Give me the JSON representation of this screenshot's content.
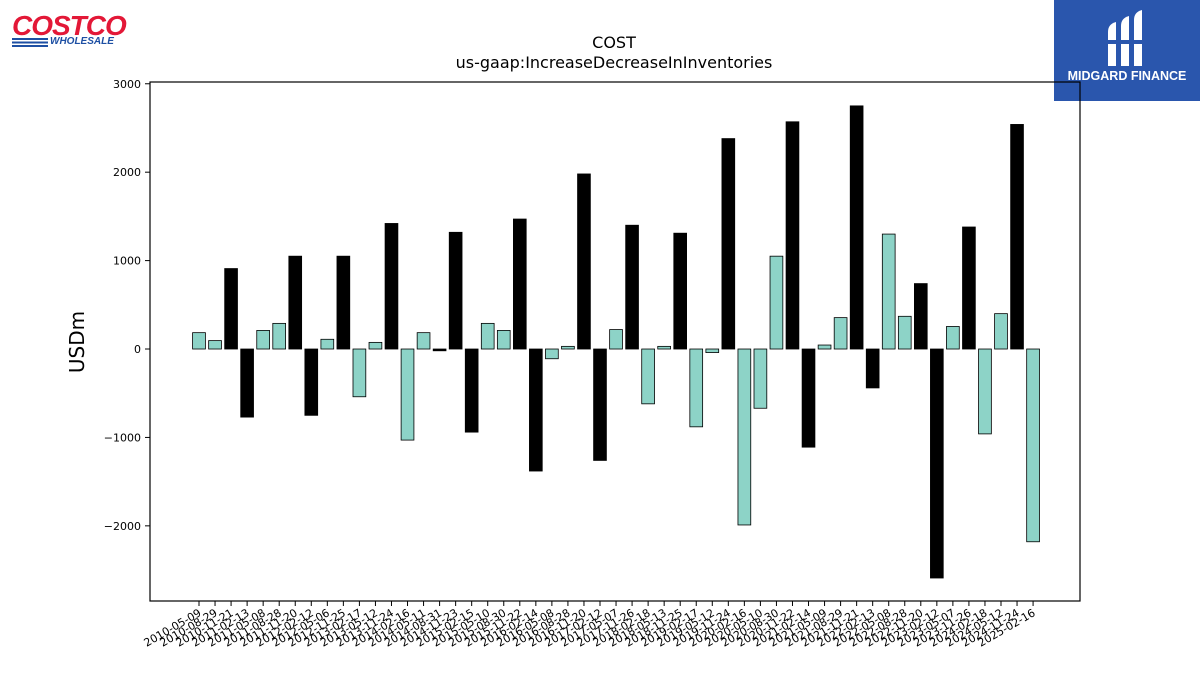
{
  "logo_left": {
    "brand": "COSTCO",
    "sub": "WHOLESALE"
  },
  "logo_right": {
    "name": "MIDGARD FINANCE",
    "icon": "midgard-mark-icon"
  },
  "chart_data": {
    "type": "bar",
    "title": "COST",
    "subtitle": "us-gaap:IncreaseDecreaseInInventories",
    "ylabel": "USDm",
    "xlabel": "",
    "ylim": [
      -2850,
      3020
    ],
    "yticks": [
      -2000,
      -1000,
      0,
      1000,
      2000,
      3000
    ],
    "ytick_labels": [
      "−2000",
      "−1000",
      "0",
      "1000",
      "2000",
      "3000"
    ],
    "grid": false,
    "colors": {
      "quarter": "#8dd3c7",
      "annual": "#000000",
      "edge": "#000000"
    },
    "categories": [
      "2010-05-09",
      "2010-08-29",
      "2010-11-21",
      "2011-02-13",
      "2011-05-08",
      "2011-08-28",
      "2011-11-20",
      "2012-02-12",
      "2012-05-06",
      "2012-11-25",
      "2013-02-17",
      "2013-05-12",
      "2013-11-24",
      "2014-02-16",
      "2014-05-11",
      "2014-08-31",
      "2014-11-23",
      "2015-02-15",
      "2015-05-10",
      "2015-08-30",
      "2015-11-22",
      "2016-02-14",
      "2016-05-08",
      "2016-08-28",
      "2016-11-20",
      "2017-02-12",
      "2017-05-07",
      "2017-11-26",
      "2018-02-18",
      "2018-05-13",
      "2018-11-25",
      "2019-02-17",
      "2019-05-12",
      "2019-11-24",
      "2020-02-16",
      "2020-05-10",
      "2020-08-30",
      "2020-11-22",
      "2021-02-14",
      "2021-05-09",
      "2021-08-29",
      "2021-11-21",
      "2022-02-13",
      "2022-05-08",
      "2022-08-28",
      "2022-11-20",
      "2023-02-12",
      "2023-05-07",
      "2023-11-26",
      "2024-02-18",
      "2024-05-12",
      "2024-11-24",
      "2025-02-16"
    ],
    "x": [
      0,
      1,
      2,
      3,
      4,
      5,
      6,
      7,
      8,
      9,
      10,
      11,
      12,
      13,
      14,
      15,
      16,
      17,
      18,
      19,
      20,
      21,
      22,
      23,
      24,
      25,
      26,
      27,
      28,
      29,
      30,
      31,
      32,
      33,
      34,
      35,
      36,
      37,
      38,
      39,
      40,
      41,
      42,
      43,
      44,
      45,
      46,
      47,
      48,
      49,
      50,
      51,
      52
    ],
    "values": [
      185,
      95,
      910,
      -770,
      210,
      290,
      1050,
      -750,
      110,
      1050,
      -540,
      75,
      1420,
      -1030,
      185,
      -20,
      1320,
      -940,
      290,
      210,
      1470,
      -1380,
      -110,
      30,
      1980,
      -1260,
      220,
      1400,
      -620,
      30,
      1310,
      -880,
      -40,
      2380,
      -1990,
      -670,
      1050,
      2570,
      -1110,
      45,
      355,
      2750,
      -440,
      1300,
      370,
      740,
      -2590,
      255,
      1380,
      -960,
      400,
      2540,
      -2180
    ],
    "annual": [
      false,
      false,
      true,
      true,
      false,
      false,
      true,
      true,
      false,
      true,
      false,
      false,
      true,
      false,
      false,
      true,
      true,
      true,
      false,
      false,
      true,
      true,
      false,
      false,
      true,
      true,
      false,
      true,
      false,
      false,
      true,
      false,
      false,
      true,
      false,
      false,
      false,
      true,
      true,
      false,
      false,
      true,
      true,
      false,
      false,
      true,
      true,
      false,
      true,
      false,
      false,
      true,
      false
    ]
  }
}
